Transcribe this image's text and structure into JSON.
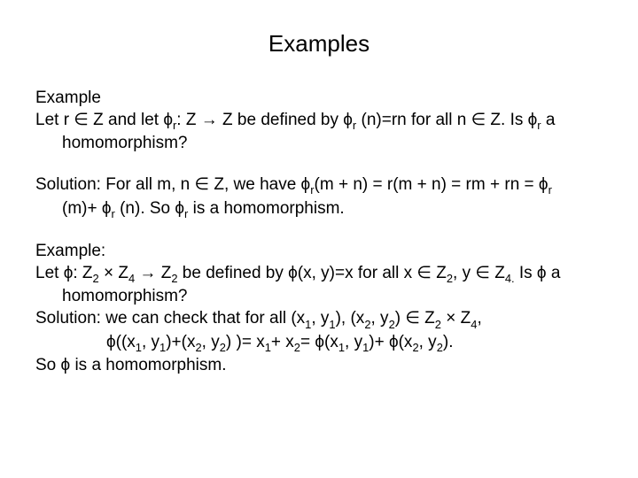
{
  "title": "Examples",
  "ex1": {
    "label": "Example",
    "line1_a": "Let r ∈ Z and let ϕ",
    "line1_b": ": Z → Z be defined by ϕ",
    "line1_c": " (n)=rn for all n ∈ Z. Is ϕ",
    "line1_d": " a",
    "line2": "homomorphism?",
    "sub_r": "r"
  },
  "sol1": {
    "line1_a": "Solution: For all m, n ∈ Z, we have ϕ",
    "line1_b": "(m + n) = r(m + n) = rm + rn = ϕ",
    "line2_a": "(m)+ ϕ",
    "line2_b": " (n). So ϕ",
    "line2_c": " is a homomorphism.",
    "sub_r": "r"
  },
  "ex2": {
    "label": "Example:",
    "line1_a": "Let ϕ: Z",
    "line1_b": " × Z",
    "line1_c": " → Z",
    "line1_d": " be defined by ϕ(x, y)=x for all x ∈ Z",
    "line1_e": ", y ∈ Z",
    "line1_f": " Is ϕ a",
    "line2": "homomorphism?",
    "sol_line_a": "Solution: we can check that for all (x",
    "sol_line_b": ", y",
    "sol_line_c": "), (x",
    "sol_line_d": ", y",
    "sol_line_e": ") ∈ Z",
    "sol_line_f": " × Z",
    "sol_line_g": ",",
    "phi_a": "ϕ((x",
    "phi_b": ", y",
    "phi_c": ")+(x",
    "phi_d": ", y",
    "phi_e": ") )= x",
    "phi_f": "+ x",
    "phi_g": "= ϕ(x",
    "phi_h": ", y",
    "phi_i": ")+ ϕ(x",
    "phi_j": ", y",
    "phi_k": ").",
    "conclude": "So ϕ is a homomorphism.",
    "s1": "1",
    "s2": "2",
    "s4": "4",
    "s4dot": "4."
  }
}
